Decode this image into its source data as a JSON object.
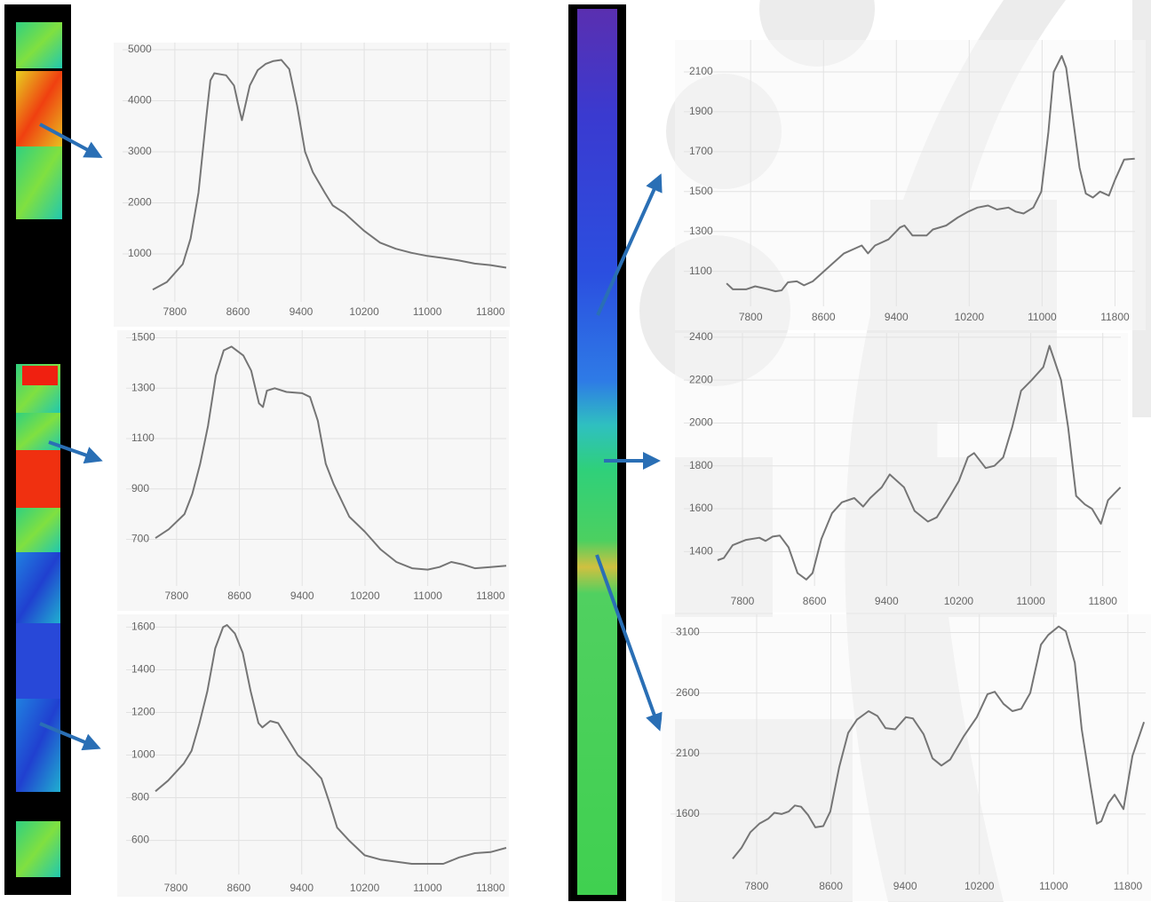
{
  "chart_data": [
    {
      "type": "line",
      "color": "#757575",
      "grid": true,
      "xlim": [
        7520,
        12000
      ],
      "ylim": [
        60,
        5140
      ],
      "xticks": [
        7800,
        8600,
        9400,
        10200,
        11000,
        11800
      ],
      "yticks": [
        1000,
        2000,
        3000,
        4000,
        5000
      ],
      "x": [
        7520,
        7700,
        7900,
        8000,
        8100,
        8200,
        8250,
        8300,
        8450,
        8550,
        8600,
        8650,
        8750,
        8850,
        8950,
        9050,
        9150,
        9250,
        9350,
        9450,
        9550,
        9700,
        9800,
        9950,
        10200,
        10400,
        10600,
        10800,
        11000,
        11200,
        11400,
        11600,
        11800,
        12000
      ],
      "values": [
        300,
        450,
        800,
        1300,
        2200,
        3700,
        4400,
        4540,
        4500,
        4300,
        3950,
        3620,
        4300,
        4600,
        4720,
        4780,
        4800,
        4620,
        3900,
        3000,
        2600,
        2200,
        1950,
        1800,
        1450,
        1220,
        1100,
        1020,
        960,
        920,
        870,
        810,
        780,
        730
      ]
    },
    {
      "type": "line",
      "color": "#757575",
      "grid": true,
      "xlim": [
        7530,
        12000
      ],
      "ylim": [
        515,
        1530
      ],
      "xticks": [
        7800,
        8600,
        9400,
        10200,
        11000,
        11800
      ],
      "yticks": [
        700,
        900,
        1100,
        1300,
        1500
      ],
      "x": [
        7530,
        7700,
        7900,
        8000,
        8100,
        8200,
        8300,
        8400,
        8500,
        8650,
        8750,
        8850,
        8900,
        8950,
        9050,
        9200,
        9400,
        9500,
        9600,
        9700,
        9800,
        10000,
        10200,
        10400,
        10600,
        10800,
        11000,
        11150,
        11300,
        11450,
        11600,
        11800,
        12000
      ],
      "values": [
        705,
        740,
        800,
        880,
        1000,
        1150,
        1350,
        1450,
        1465,
        1430,
        1370,
        1240,
        1225,
        1290,
        1300,
        1285,
        1280,
        1265,
        1170,
        1000,
        920,
        790,
        730,
        660,
        610,
        585,
        580,
        590,
        610,
        600,
        585,
        590,
        595
      ]
    },
    {
      "type": "line",
      "color": "#757575",
      "grid": true,
      "xlim": [
        7540,
        12000
      ],
      "ylim": [
        440,
        1660
      ],
      "xticks": [
        7800,
        8600,
        9400,
        10200,
        11000,
        11800
      ],
      "yticks": [
        600,
        800,
        1000,
        1200,
        1400,
        1600
      ],
      "x": [
        7540,
        7700,
        7900,
        8000,
        8100,
        8200,
        8300,
        8400,
        8450,
        8550,
        8650,
        8750,
        8850,
        8900,
        9000,
        9100,
        9200,
        9350,
        9500,
        9650,
        9750,
        9850,
        10000,
        10200,
        10400,
        10600,
        10800,
        11000,
        11200,
        11400,
        11600,
        11800,
        12000
      ],
      "values": [
        830,
        880,
        960,
        1020,
        1150,
        1300,
        1500,
        1600,
        1610,
        1570,
        1480,
        1300,
        1150,
        1130,
        1160,
        1150,
        1090,
        1000,
        950,
        890,
        780,
        660,
        600,
        530,
        510,
        500,
        490,
        490,
        490,
        520,
        540,
        545,
        565
      ]
    },
    {
      "type": "line",
      "color": "#757575",
      "grid": true,
      "xlim": [
        7535,
        12020
      ],
      "ylim": [
        925,
        2260
      ],
      "xticks": [
        7800,
        8600,
        9400,
        10200,
        11000,
        11800
      ],
      "yticks": [
        1100,
        1300,
        1500,
        1700,
        1900,
        2100
      ],
      "x": [
        7536,
        7605,
        7750,
        7850,
        7995,
        8073,
        8140,
        8210,
        8307,
        8386,
        8483,
        8678,
        8825,
        9020,
        9088,
        9166,
        9313,
        9440,
        9489,
        9577,
        9733,
        9801,
        9947,
        10074,
        10191,
        10289,
        10406,
        10504,
        10630,
        10708,
        10796,
        10904,
        10991,
        11069,
        11128,
        11216,
        11264,
        11343,
        11411,
        11480,
        11558,
        11636,
        11733,
        11802,
        11900,
        12017
      ],
      "values": [
        1040,
        1010,
        1010,
        1025,
        1010,
        1000,
        1005,
        1045,
        1050,
        1030,
        1050,
        1130,
        1190,
        1230,
        1190,
        1230,
        1260,
        1320,
        1330,
        1280,
        1280,
        1310,
        1330,
        1370,
        1400,
        1420,
        1430,
        1410,
        1420,
        1400,
        1390,
        1420,
        1500,
        1800,
        2100,
        2180,
        2120,
        1850,
        1620,
        1490,
        1470,
        1500,
        1480,
        1560,
        1660,
        1665
      ]
    },
    {
      "type": "line",
      "color": "#757575",
      "grid": true,
      "xlim": [
        7524,
        12000
      ],
      "ylim": [
        1240,
        2420
      ],
      "xticks": [
        7800,
        8600,
        9400,
        10200,
        11000,
        11800
      ],
      "yticks": [
        1400,
        1600,
        1800,
        2000,
        2200,
        2400
      ],
      "x": [
        7524,
        7593,
        7692,
        7839,
        7987,
        8056,
        8135,
        8214,
        8312,
        8411,
        8509,
        8578,
        8677,
        8795,
        8903,
        9041,
        9140,
        9218,
        9346,
        9435,
        9593,
        9711,
        9859,
        9957,
        10105,
        10203,
        10302,
        10371,
        10499,
        10597,
        10695,
        10794,
        10893,
        11011,
        11139,
        11208,
        11257,
        11336,
        11415,
        11504,
        11602,
        11681,
        11779,
        11858,
        11927,
        11996
      ],
      "values": [
        1360,
        1370,
        1430,
        1455,
        1465,
        1450,
        1470,
        1475,
        1420,
        1300,
        1270,
        1300,
        1460,
        1580,
        1630,
        1650,
        1610,
        1650,
        1700,
        1760,
        1700,
        1590,
        1540,
        1560,
        1660,
        1730,
        1840,
        1860,
        1790,
        1800,
        1840,
        1980,
        2150,
        2200,
        2260,
        2360,
        2300,
        2200,
        1980,
        1660,
        1620,
        1600,
        1530,
        1640,
        1670,
        1700
      ]
    },
    {
      "type": "line",
      "color": "#757575",
      "grid": true,
      "xlim": [
        7542,
        11992
      ],
      "ylim": [
        1100,
        3250
      ],
      "xticks": [
        7800,
        8600,
        9400,
        10200,
        11000,
        11800
      ],
      "yticks": [
        1600,
        2100,
        2600,
        3100
      ],
      "x": [
        7542,
        7637,
        7733,
        7829,
        7924,
        7991,
        8068,
        8145,
        8212,
        8279,
        8355,
        8432,
        8518,
        8594,
        8690,
        8786,
        8881,
        9006,
        9102,
        9188,
        9293,
        9408,
        9484,
        9599,
        9695,
        9791,
        9886,
        10030,
        10173,
        10288,
        10366,
        10460,
        10556,
        10652,
        10748,
        10864,
        10942,
        11054,
        11132,
        11228,
        11303,
        11399,
        11466,
        11514,
        11590,
        11657,
        11753,
        11849,
        11974
      ],
      "values": [
        1230,
        1320,
        1450,
        1520,
        1560,
        1610,
        1600,
        1620,
        1670,
        1660,
        1590,
        1490,
        1500,
        1620,
        1990,
        2270,
        2380,
        2450,
        2410,
        2310,
        2300,
        2400,
        2390,
        2260,
        2060,
        2000,
        2050,
        2240,
        2400,
        2590,
        2610,
        2510,
        2450,
        2470,
        2600,
        3000,
        3080,
        3150,
        3110,
        2850,
        2300,
        1830,
        1520,
        1540,
        1690,
        1760,
        1640,
        2080,
        2360
      ]
    }
  ]
}
